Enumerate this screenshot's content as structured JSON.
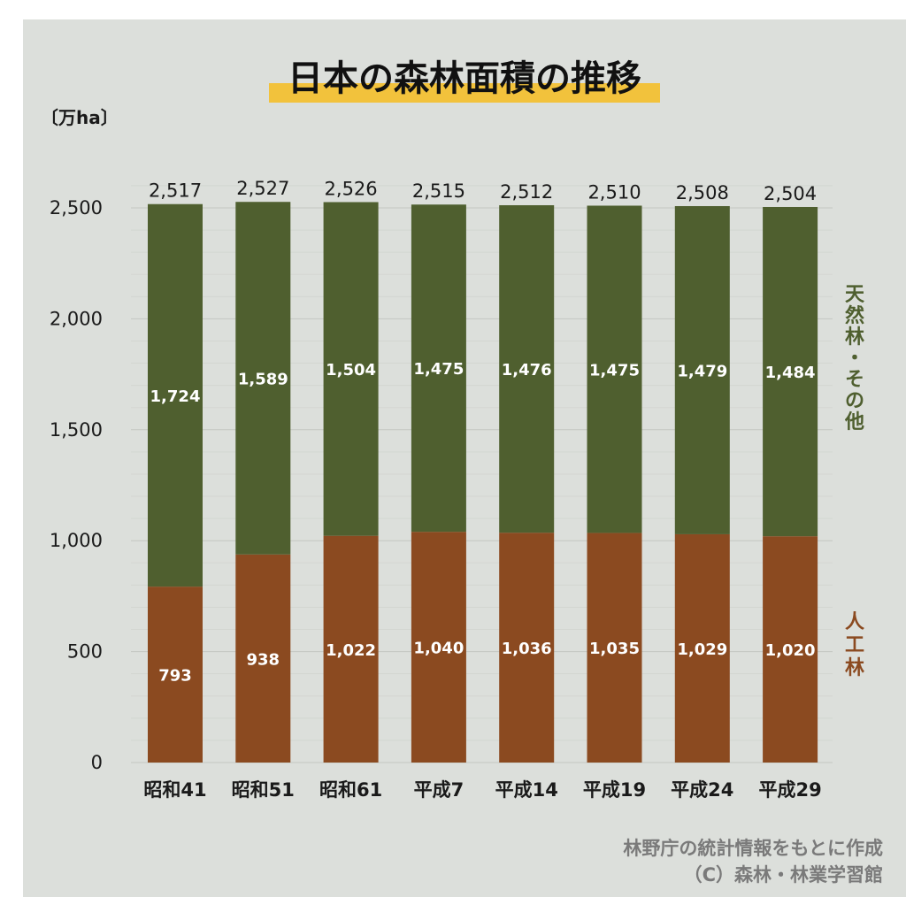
{
  "colors": {
    "natural": "#4f5f2f",
    "planted": "#8b4a20",
    "title_highlight": "#f2c23c",
    "natural_legend": "#4f5f2f",
    "planted_legend": "#8b4a20"
  },
  "chart_data": {
    "type": "bar",
    "stacked": true,
    "title": "日本の森林面積の推移",
    "ylabel": "〔万ha〕",
    "xlabel": "",
    "ylim": [
      0,
      2600
    ],
    "yticks": [
      "0",
      "500",
      "1,000",
      "1,500",
      "2,000",
      "2,500"
    ],
    "ytick_values": [
      0,
      500,
      1000,
      1500,
      2000,
      2500
    ],
    "grid": true,
    "categories": [
      "昭和41",
      "昭和51",
      "昭和61",
      "平成7",
      "平成14",
      "平成19",
      "平成24",
      "平成29"
    ],
    "series": [
      {
        "name": "人工林",
        "values": [
          793,
          938,
          1022,
          1040,
          1036,
          1035,
          1029,
          1020
        ],
        "labels": [
          "793",
          "938",
          "1,022",
          "1,040",
          "1,036",
          "1,035",
          "1,029",
          "1,020"
        ]
      },
      {
        "name": "天然林・その他",
        "values": [
          1724,
          1589,
          1504,
          1475,
          1476,
          1475,
          1479,
          1484
        ],
        "labels": [
          "1,724",
          "1,589",
          "1,504",
          "1,475",
          "1,476",
          "1,475",
          "1,479",
          "1,484"
        ]
      }
    ],
    "totals": [
      2517,
      2527,
      2526,
      2515,
      2512,
      2510,
      2508,
      2504
    ],
    "total_labels": [
      "2,517",
      "2,527",
      "2,526",
      "2,515",
      "2,512",
      "2,510",
      "2,508",
      "2,504"
    ],
    "legend": {
      "natural": [
        "天",
        "然",
        "林",
        "・",
        "そ",
        "の",
        "他"
      ],
      "planted": [
        "人",
        "工",
        "林"
      ]
    }
  },
  "source": {
    "line1": "林野庁の統計情報をもとに作成",
    "line2": "（C）森林・林業学習館"
  }
}
